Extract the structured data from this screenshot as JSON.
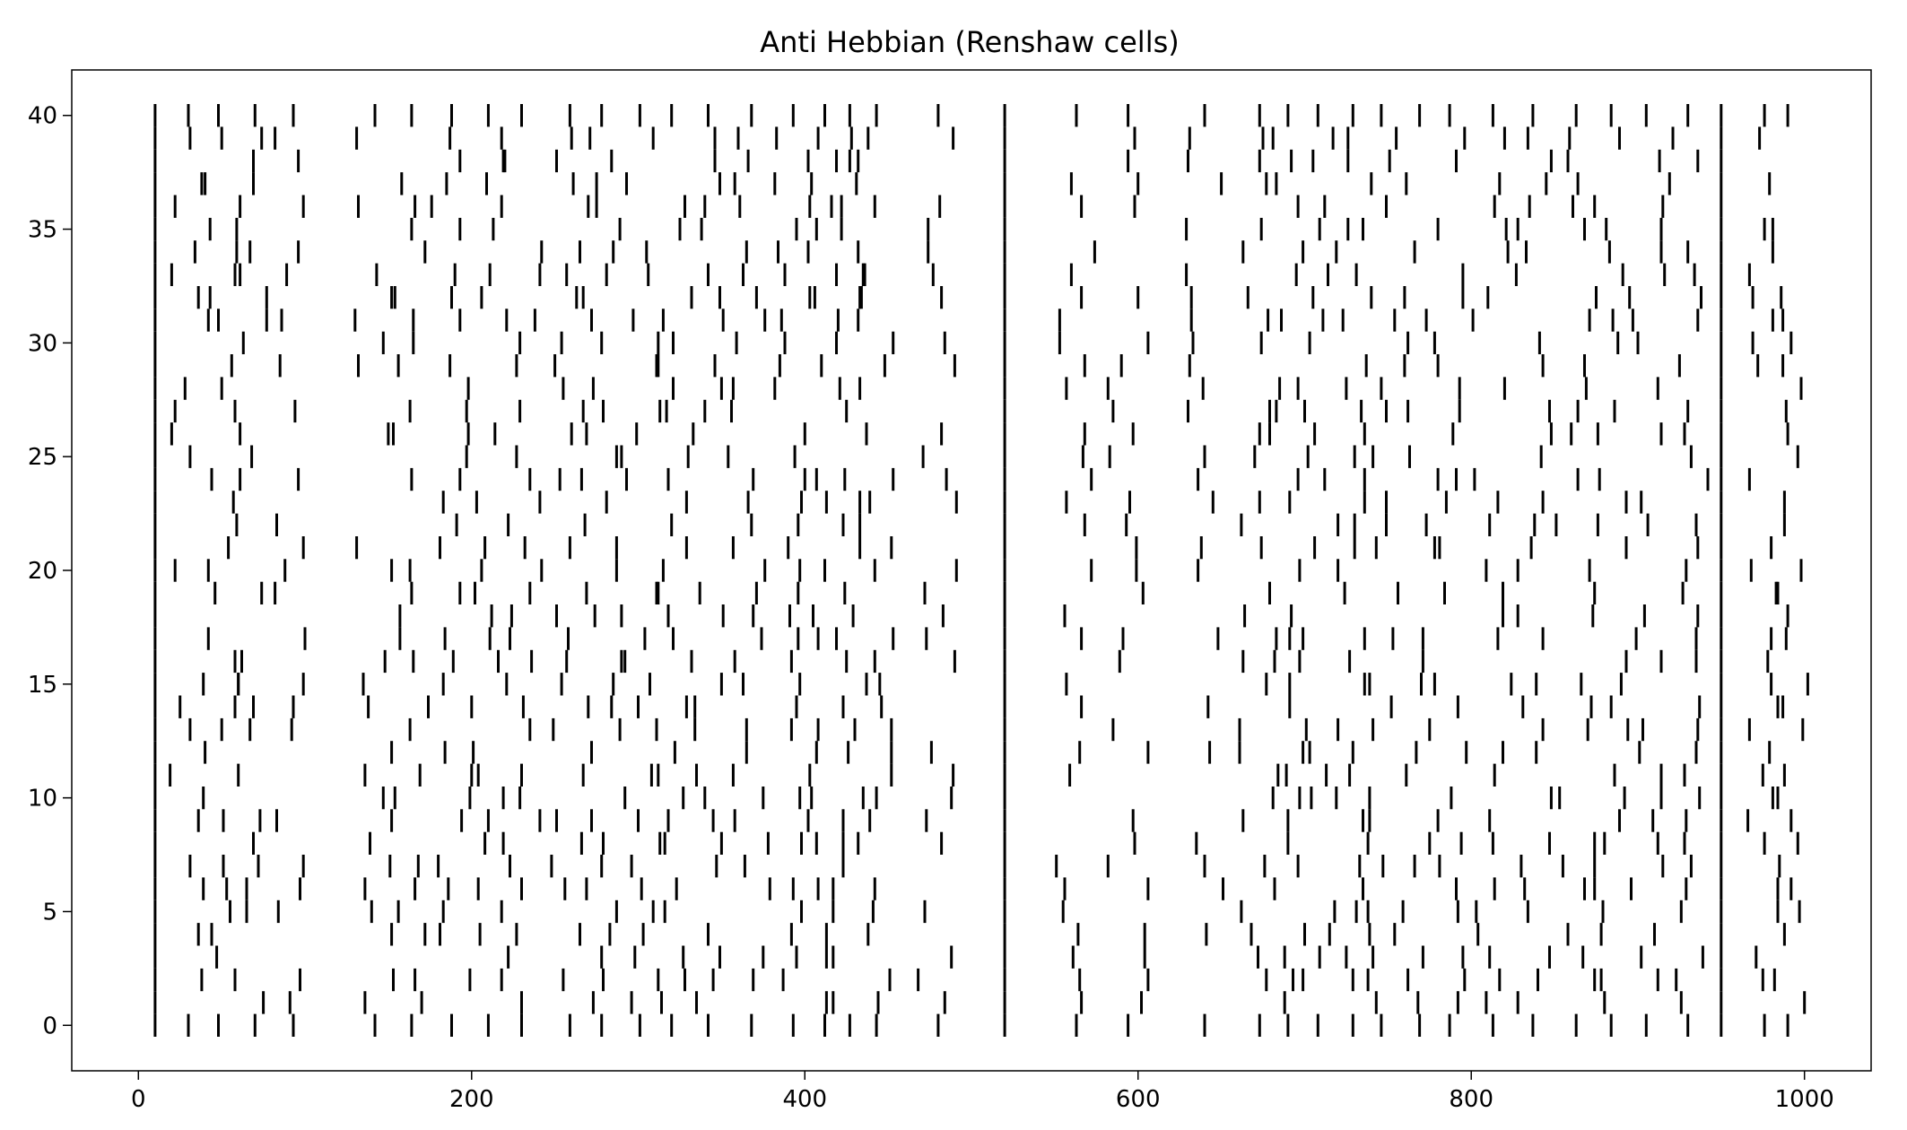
{
  "chart_data": {
    "type": "raster",
    "title": "Anti Hebbian (Renshaw cells)",
    "xlabel": "",
    "ylabel": "",
    "xlim": [
      -40,
      1040
    ],
    "ylim": [
      -2,
      42
    ],
    "xticks": [
      0,
      200,
      400,
      600,
      800,
      1000
    ],
    "yticks": [
      0,
      5,
      10,
      15,
      20,
      25,
      30,
      35,
      40
    ],
    "xtick_labels": [
      "0",
      "200",
      "400",
      "600",
      "800",
      "1000"
    ],
    "ytick_labels": [
      "0",
      "5",
      "10",
      "15",
      "20",
      "25",
      "30",
      "35",
      "40"
    ],
    "neurons": 41,
    "grid": false,
    "legend": "none",
    "marker": "vertical line spanning one neuron row",
    "colors": {
      "spike": "#000000",
      "axes": "#000000",
      "background": "#ffffff"
    },
    "full_column_spike_times": [
      10,
      520,
      950
    ],
    "broadcast_spike_times": [
      10,
      30,
      48,
      70,
      93,
      142,
      164,
      188,
      210,
      230,
      259,
      278,
      301,
      320,
      342,
      368,
      393,
      412,
      427,
      443,
      480,
      520,
      563,
      594,
      640,
      673,
      690,
      708,
      729,
      746,
      769,
      787,
      813,
      837,
      863,
      884,
      905,
      930,
      950,
      976,
      990
    ],
    "jitter_range": [
      -12,
      12
    ],
    "drop_probability": 0.28,
    "sample_seed": 7
  }
}
